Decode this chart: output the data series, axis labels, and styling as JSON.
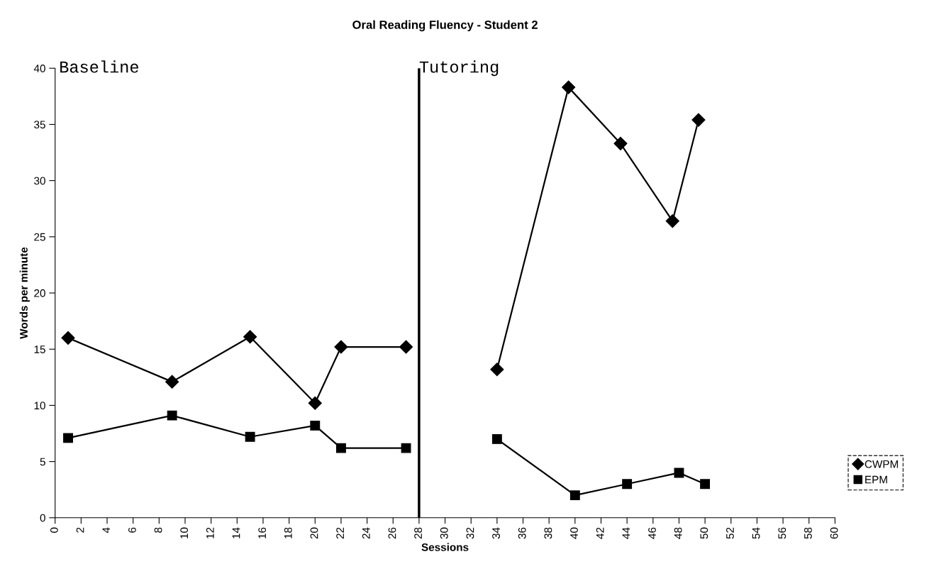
{
  "chart_data": {
    "type": "line",
    "title": "Oral Reading Fluency - Student 2",
    "xlabel": "Sessions",
    "ylabel": "Words per minute",
    "series": [
      {
        "name": "CWPM",
        "color": "#000000",
        "marker": "diamond",
        "x": [
          1,
          9,
          15,
          20,
          22,
          27,
          28,
          34,
          39.5,
          43.5,
          47.5,
          49.5
        ],
        "values": [
          16,
          12.1,
          16.1,
          10.2,
          15.2,
          15.2,
          null,
          13.2,
          38.3,
          33.3,
          26.4,
          35.4
        ]
      },
      {
        "name": "EPM",
        "color": "#000000",
        "marker": "square",
        "x": [
          1,
          9,
          15,
          20,
          22,
          27,
          28,
          34,
          40,
          44,
          48,
          50
        ],
        "values": [
          7.1,
          9.1,
          7.2,
          8.2,
          6.2,
          6.2,
          null,
          7.0,
          2.0,
          3.0,
          4.0,
          3.0
        ]
      }
    ],
    "xlim": [
      0,
      60
    ],
    "xticks": [
      0,
      2,
      4,
      6,
      8,
      10,
      12,
      14,
      16,
      18,
      20,
      22,
      24,
      26,
      28,
      30,
      32,
      34,
      36,
      38,
      40,
      42,
      44,
      46,
      48,
      50,
      52,
      54,
      56,
      58,
      60
    ],
    "ylim": [
      0,
      40
    ],
    "yticks": [
      0,
      5,
      10,
      15,
      20,
      25,
      30,
      35,
      40
    ],
    "ref_lines": [
      {
        "axis": "x",
        "value": 28,
        "label": "Tutoring",
        "color": "#000000"
      }
    ],
    "annotations": [
      "Baseline"
    ],
    "grid": false,
    "legend": "right",
    "line_style": "solid"
  }
}
